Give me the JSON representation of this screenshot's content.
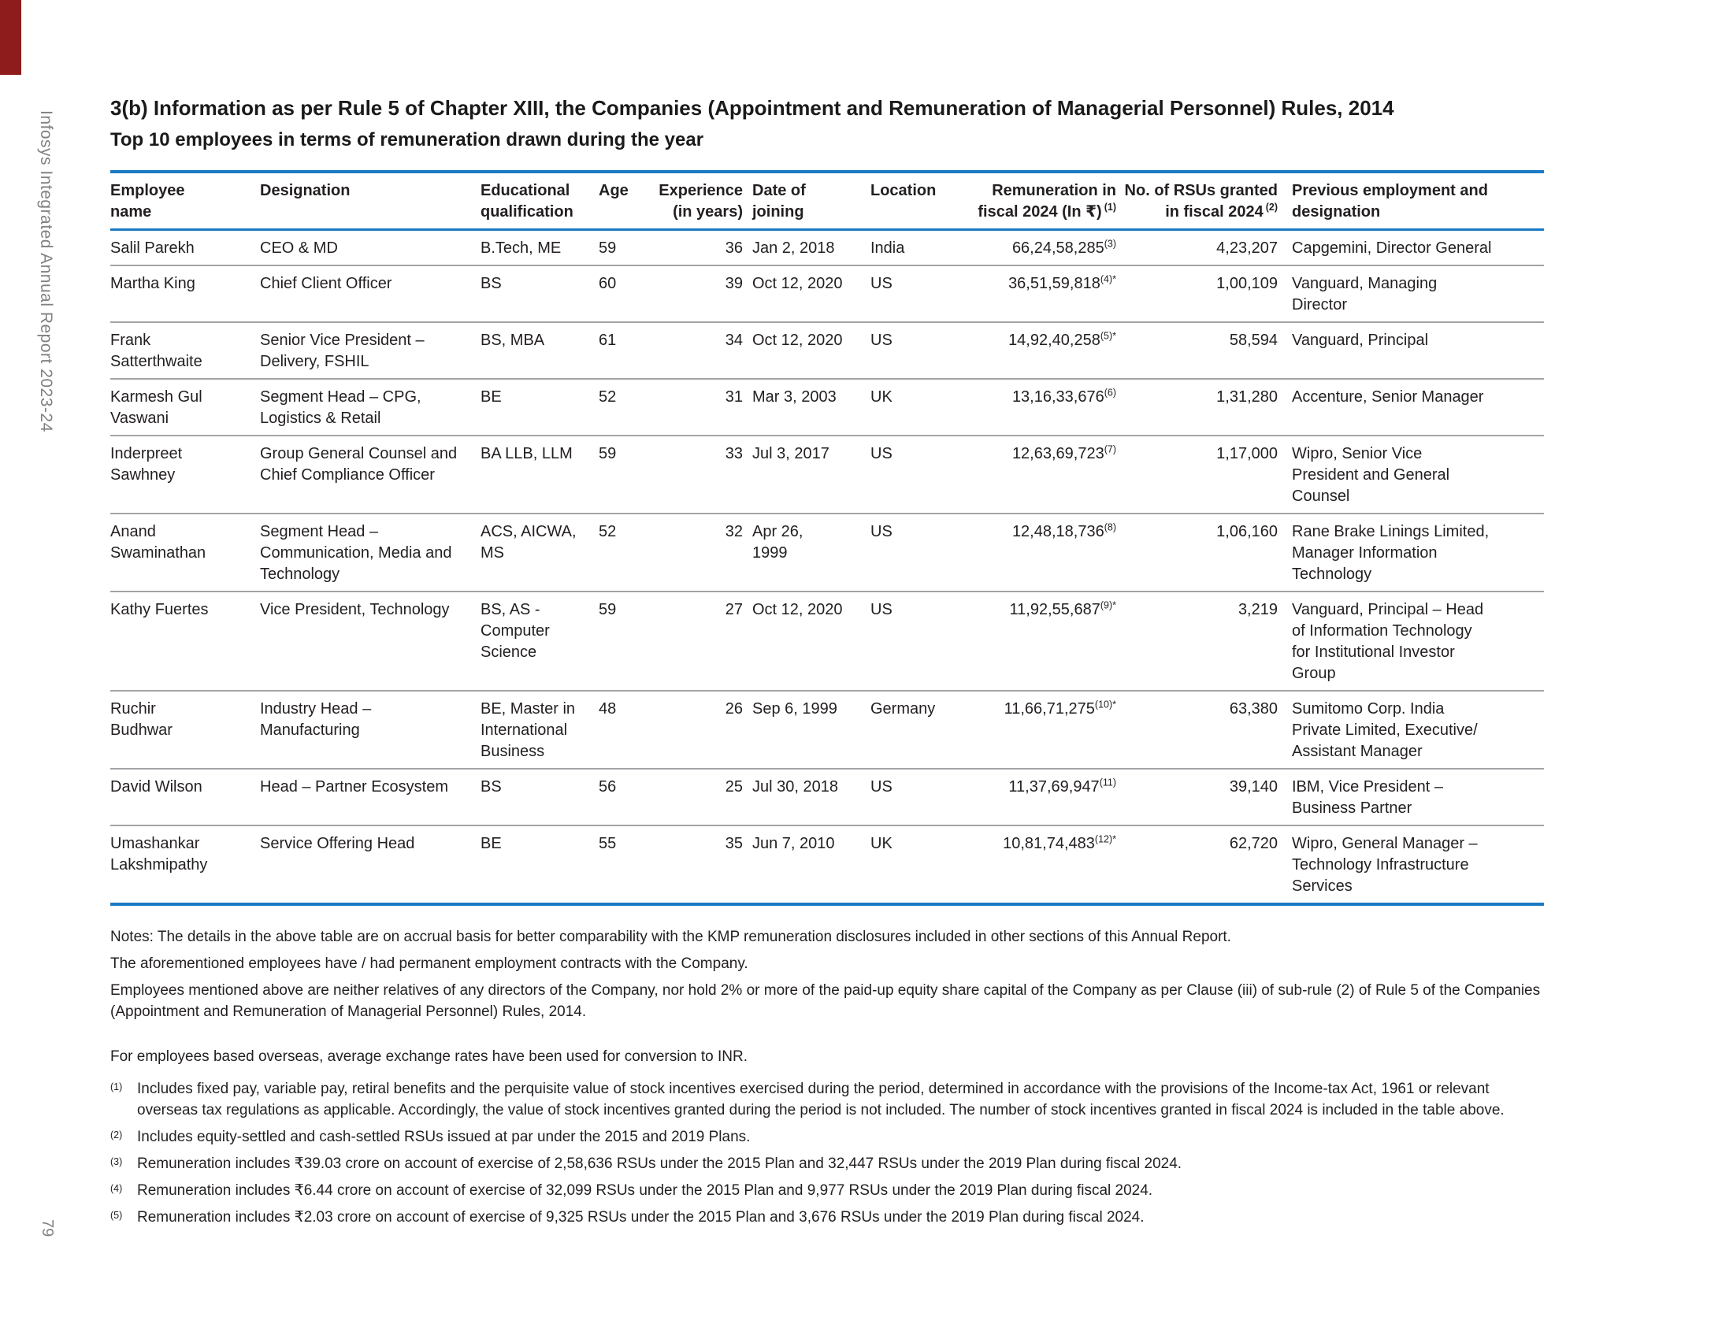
{
  "sidebar": {
    "report_title": "Infosys Integrated Annual Report 2023-24",
    "page_number": "79"
  },
  "header": {
    "title": "3(b) Information as per Rule 5 of Chapter XIII, the Companies (Appointment and Remuneration of Managerial Personnel) Rules, 2014",
    "subtitle": "Top 10 employees in terms of remuneration drawn during the year"
  },
  "table": {
    "columns": [
      {
        "label": "Employee\nname"
      },
      {
        "label": "Designation"
      },
      {
        "label": "Educational\nqualification"
      },
      {
        "label": "Age"
      },
      {
        "label": "Experience\n(in years)"
      },
      {
        "label": "Date of\njoining"
      },
      {
        "label": "Location"
      },
      {
        "label": "Remuneration in\nfiscal 2024 (In ₹)",
        "sup": "(1)"
      },
      {
        "label": "No. of RSUs granted\nin fiscal 2024",
        "sup": "(2)"
      },
      {
        "label": "Previous employment and\ndesignation"
      }
    ],
    "rows": [
      {
        "employee_name": "Salil Parekh",
        "designation": "CEO & MD",
        "qualification": "B.Tech, ME",
        "age": "59",
        "experience_years": "36",
        "date_of_joining": "Jan 2, 2018",
        "location": "India",
        "remuneration": "66,24,58,285",
        "remuneration_note": "(3)",
        "rsus_granted": "4,23,207",
        "previous_employment": "Capgemini, Director General"
      },
      {
        "employee_name": "Martha King",
        "designation": "Chief Client Officer",
        "qualification": "BS",
        "age": "60",
        "experience_years": "39",
        "date_of_joining": "Oct 12, 2020",
        "location": "US",
        "remuneration": "36,51,59,818",
        "remuneration_note": "(4)*",
        "rsus_granted": "1,00,109",
        "previous_employment": "Vanguard, Managing Director"
      },
      {
        "employee_name": "Frank Satterthwaite",
        "designation": "Senior Vice President – Delivery, FSHIL",
        "qualification": "BS, MBA",
        "age": "61",
        "experience_years": "34",
        "date_of_joining": "Oct 12, 2020",
        "location": "US",
        "remuneration": "14,92,40,258",
        "remuneration_note": "(5)*",
        "rsus_granted": "58,594",
        "previous_employment": "Vanguard, Principal"
      },
      {
        "employee_name": "Karmesh Gul Vaswani",
        "designation": "Segment Head – CPG, Logistics & Retail",
        "qualification": "BE",
        "age": "52",
        "experience_years": "31",
        "date_of_joining": "Mar 3, 2003",
        "location": "UK",
        "remuneration": "13,16,33,676",
        "remuneration_note": "(6)",
        "rsus_granted": "1,31,280",
        "previous_employment": "Accenture, Senior Manager"
      },
      {
        "employee_name": "Inderpreet Sawhney",
        "designation": "Group General Counsel and Chief Compliance Officer",
        "qualification": "BA LLB, LLM",
        "age": "59",
        "experience_years": "33",
        "date_of_joining": "Jul 3, 2017",
        "location": "US",
        "remuneration": "12,63,69,723",
        "remuneration_note": "(7)",
        "rsus_granted": "1,17,000",
        "previous_employment": "Wipro, Senior Vice President and General Counsel"
      },
      {
        "employee_name": "Anand Swaminathan",
        "designation": "Segment Head – Communication, Media and Technology",
        "qualification": "ACS, AICWA, MS",
        "age": "52",
        "experience_years": "32",
        "date_of_joining": "Apr 26,\n1999",
        "location": "US",
        "remuneration": "12,48,18,736",
        "remuneration_note": "(8)",
        "rsus_granted": "1,06,160",
        "previous_employment": "Rane Brake Linings Limited, Manager Information Technology"
      },
      {
        "employee_name": "Kathy Fuertes",
        "designation": "Vice President, Technology",
        "qualification": "BS, AS - Computer Science",
        "age": "59",
        "experience_years": "27",
        "date_of_joining": "Oct 12, 2020",
        "location": "US",
        "remuneration": "11,92,55,687",
        "remuneration_note": "(9)*",
        "rsus_granted": "3,219",
        "previous_employment": "Vanguard, Principal – Head of Information Technology for Institutional Investor Group"
      },
      {
        "employee_name": "Ruchir Budhwar",
        "designation": "Industry Head – Manufacturing",
        "qualification": "BE, Master in International Business",
        "age": "48",
        "experience_years": "26",
        "date_of_joining": "Sep 6, 1999",
        "location": "Germany",
        "remuneration": "11,66,71,275",
        "remuneration_note": "(10)*",
        "rsus_granted": "63,380",
        "previous_employment": "Sumitomo Corp. India Private Limited, Executive/ Assistant Manager"
      },
      {
        "employee_name": "David Wilson",
        "designation": "Head – Partner Ecosystem",
        "qualification": "BS",
        "age": "56",
        "experience_years": "25",
        "date_of_joining": "Jul 30, 2018",
        "location": "US",
        "remuneration": "11,37,69,947",
        "remuneration_note": "(11)",
        "rsus_granted": "39,140",
        "previous_employment": "IBM, Vice President – Business Partner"
      },
      {
        "employee_name": "Umashankar Lakshmipathy",
        "designation": "Service Offering Head",
        "qualification": "BE",
        "age": "55",
        "experience_years": "35",
        "date_of_joining": "Jun 7, 2010",
        "location": "UK",
        "remuneration": "10,81,74,483",
        "remuneration_note": "(12)*",
        "rsus_granted": "62,720",
        "previous_employment": "Wipro, General Manager – Technology Infrastructure Services"
      }
    ]
  },
  "notes": {
    "lines": [
      "Notes:  The details in the above table are on accrual basis for better comparability with the KMP remuneration disclosures included in other sections of this Annual Report.",
      "The aforementioned employees have / had permanent employment contracts with the Company.",
      "Employees mentioned above are neither relatives of any directors of the Company, nor hold 2% or more of the paid-up equity share capital of the Company as per Clause (iii) of sub-rule (2) of Rule 5 of the Companies (Appointment and Remuneration of Managerial Personnel) Rules, 2014.",
      "For employees based overseas, average exchange rates have been used for conversion to INR."
    ]
  },
  "footnotes": [
    {
      "marker": "(1)",
      "text": "Includes fixed pay, variable pay, retiral benefits and the perquisite value of stock incentives exercised during the period, determined in accordance with the provisions of the Income-tax Act, 1961 or relevant overseas tax regulations as applicable. Accordingly, the value of stock incentives granted during the period is not included. The number of stock incentives granted in fiscal 2024 is included in the table above."
    },
    {
      "marker": "(2)",
      "text": "Includes equity-settled and cash-settled RSUs issued at par under the 2015 and 2019 Plans."
    },
    {
      "marker": "(3)",
      "text": "Remuneration includes ₹39.03 crore on account of exercise of 2,58,636 RSUs under the 2015 Plan and 32,447 RSUs under the 2019 Plan during fiscal 2024."
    },
    {
      "marker": "(4)",
      "text": "Remuneration includes ₹6.44 crore on account of exercise of 32,099 RSUs under the 2015 Plan and 9,977 RSUs under the 2019 Plan during fiscal 2024."
    },
    {
      "marker": "(5)",
      "text": "Remuneration includes ₹2.03 crore on account of exercise of 9,325 RSUs under the 2015 Plan and 3,676 RSUs under the 2019 Plan during fiscal 2024."
    }
  ],
  "colors": {
    "accent_blue": "#1b7ac4",
    "tab_red": "#8e1c1c",
    "text": "#231f20",
    "muted": "#808184",
    "separator": "#a2a4a7"
  }
}
